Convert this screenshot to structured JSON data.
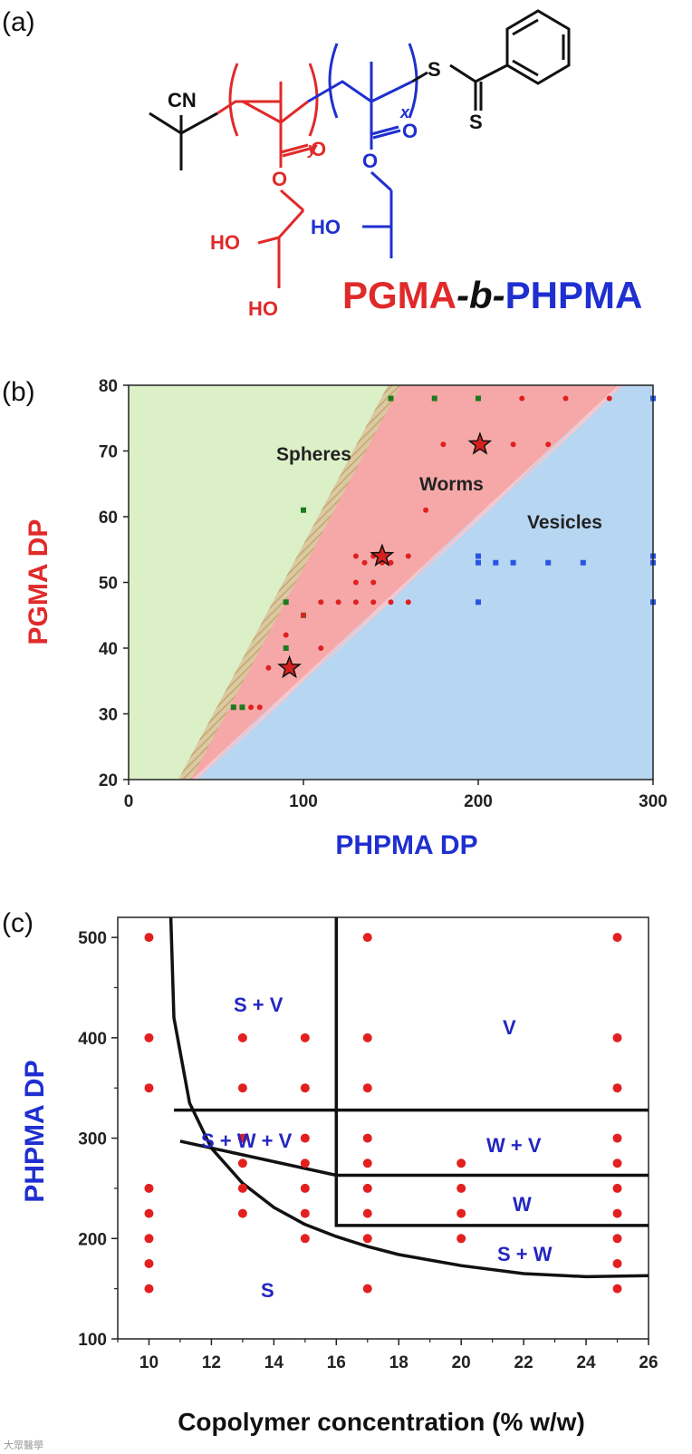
{
  "colors": {
    "pgma": "#e02a2a",
    "phpma": "#1f2fd0",
    "black": "#111111",
    "spheres_bg": "#dcf0c8",
    "worms_bg": "#f6a8a8",
    "vesicles_bg": "#b7d6f2",
    "sphere_marker": "#1e7a1e",
    "worm_marker": "#e02020",
    "vesicle_marker": "#2a55e0",
    "c_text": "#2326c0",
    "c_point": "#e32020"
  },
  "panel_a": {
    "label": "(a)",
    "atoms": {
      "cn": "CN",
      "s_top": "S",
      "s_bottom": "S",
      "o_red_carbonyl": "O",
      "o_red_ester": "O",
      "ho_red_upper": "HO",
      "ho_red_lower": "HO",
      "o_blue_carbonyl": "O",
      "o_blue_ester": "O",
      "ho_blue": "HO",
      "sub_y": "y",
      "sub_x": "x"
    },
    "name_parts": [
      "PGMA",
      "-b-",
      "PHPMA"
    ]
  },
  "chart_data": [
    {
      "panel": "(b)",
      "type": "scatter",
      "title": "",
      "xlabel": "PHPMA DP",
      "ylabel": "PGMA DP",
      "xlim": [
        0,
        300
      ],
      "ylim": [
        20,
        80
      ],
      "xticks": [
        0,
        100,
        200,
        300
      ],
      "yticks": [
        20,
        30,
        40,
        50,
        60,
        70,
        80
      ],
      "regions": [
        "Spheres",
        "Worms",
        "Vesicles"
      ],
      "sphere_worm_boundary": [
        [
          32,
          20
        ],
        [
          152,
          80
        ]
      ],
      "worm_vesicle_boundary": [
        [
          38,
          20
        ],
        [
          282,
          80
        ]
      ],
      "series": [
        {
          "name": "Spheres",
          "marker": "square",
          "points": [
            [
              150,
              78
            ],
            [
              175,
              78
            ],
            [
              200,
              78
            ],
            [
              100,
              61
            ],
            [
              90,
              47
            ],
            [
              100,
              45
            ],
            [
              90,
              40
            ],
            [
              60,
              31
            ],
            [
              65,
              31
            ]
          ]
        },
        {
          "name": "Worms",
          "marker": "circle",
          "points": [
            [
              225,
              78
            ],
            [
              250,
              78
            ],
            [
              275,
              78
            ],
            [
              180,
              71
            ],
            [
              220,
              71
            ],
            [
              240,
              71
            ],
            [
              170,
              61
            ],
            [
              130,
              54
            ],
            [
              140,
              54
            ],
            [
              160,
              54
            ],
            [
              135,
              53
            ],
            [
              145,
              53
            ],
            [
              150,
              53
            ],
            [
              130,
              50
            ],
            [
              140,
              50
            ],
            [
              130,
              47
            ],
            [
              140,
              47
            ],
            [
              150,
              47
            ],
            [
              160,
              47
            ],
            [
              110,
              47
            ],
            [
              120,
              47
            ],
            [
              100,
              45
            ],
            [
              90,
              42
            ],
            [
              110,
              40
            ],
            [
              80,
              37
            ],
            [
              70,
              31
            ],
            [
              75,
              31
            ]
          ]
        },
        {
          "name": "Vesicles",
          "marker": "square",
          "points": [
            [
              300,
              78
            ],
            [
              200,
              54
            ],
            [
              200,
              53
            ],
            [
              210,
              53
            ],
            [
              220,
              53
            ],
            [
              240,
              53
            ],
            [
              260,
              53
            ],
            [
              300,
              54
            ],
            [
              300,
              53
            ],
            [
              200,
              47
            ],
            [
              300,
              47
            ]
          ]
        },
        {
          "name": "highlighted",
          "marker": "star",
          "points": [
            [
              92,
              37
            ],
            [
              145,
              54
            ],
            [
              201,
              71
            ]
          ]
        }
      ]
    },
    {
      "panel": "(c)",
      "type": "scatter",
      "title": "",
      "xlabel": "Copolymer concentration (% w/w)",
      "ylabel": "PHPMA DP",
      "xlim": [
        9,
        26
      ],
      "ylim": [
        100,
        520
      ],
      "xticks": [
        10,
        12,
        14,
        16,
        18,
        20,
        22,
        24,
        26
      ],
      "yticks": [
        100,
        200,
        300,
        400,
        500
      ],
      "regions": [
        "S + V",
        "V",
        "S + W + V",
        "W + V",
        "W",
        "S + W",
        "S"
      ],
      "points": [
        [
          10,
          500
        ],
        [
          10,
          400
        ],
        [
          10,
          350
        ],
        [
          10,
          250
        ],
        [
          10,
          225
        ],
        [
          10,
          200
        ],
        [
          10,
          175
        ],
        [
          10,
          150
        ],
        [
          13,
          400
        ],
        [
          13,
          350
        ],
        [
          13,
          300
        ],
        [
          13,
          275
        ],
        [
          13,
          250
        ],
        [
          13,
          225
        ],
        [
          15,
          400
        ],
        [
          15,
          350
        ],
        [
          15,
          300
        ],
        [
          15,
          275
        ],
        [
          15,
          250
        ],
        [
          15,
          225
        ],
        [
          15,
          200
        ],
        [
          17,
          500
        ],
        [
          17,
          400
        ],
        [
          17,
          350
        ],
        [
          17,
          300
        ],
        [
          17,
          275
        ],
        [
          17,
          250
        ],
        [
          17,
          225
        ],
        [
          17,
          200
        ],
        [
          17,
          150
        ],
        [
          20,
          275
        ],
        [
          20,
          250
        ],
        [
          20,
          225
        ],
        [
          20,
          200
        ],
        [
          25,
          500
        ],
        [
          25,
          400
        ],
        [
          25,
          350
        ],
        [
          25,
          300
        ],
        [
          25,
          275
        ],
        [
          25,
          250
        ],
        [
          25,
          225
        ],
        [
          25,
          200
        ],
        [
          25,
          175
        ],
        [
          25,
          150
        ]
      ],
      "boundaries": {
        "curve": [
          [
            10.7,
            520
          ],
          [
            10.8,
            420
          ],
          [
            11.3,
            335
          ],
          [
            12,
            290
          ],
          [
            13,
            255
          ],
          [
            14,
            231
          ],
          [
            15,
            214
          ],
          [
            16,
            202
          ],
          [
            17,
            192
          ],
          [
            18,
            184
          ],
          [
            20,
            173
          ],
          [
            22,
            165
          ],
          [
            24,
            162
          ],
          [
            26,
            163
          ]
        ],
        "lines": [
          [
            [
              10.8,
              328
            ],
            [
              26,
              328
            ]
          ],
          [
            [
              11,
              297
            ],
            [
              16,
              263
            ],
            [
              26,
              263
            ]
          ],
          [
            [
              16,
              520
            ],
            [
              16,
              213
            ],
            [
              26,
              213
            ]
          ]
        ]
      }
    }
  ],
  "watermark": "大眾醫學"
}
